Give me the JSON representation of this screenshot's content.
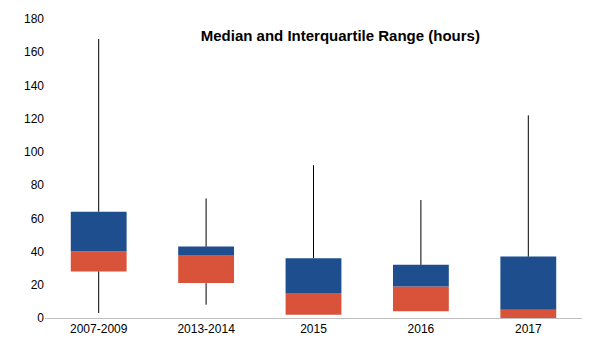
{
  "chart_data": {
    "type": "box",
    "title": "Median and Interquartile Range (hours)",
    "categories": [
      "2007-2009",
      "2013-2014",
      "2015",
      "2016",
      "2017"
    ],
    "min": [
      3,
      8,
      2,
      4,
      0
    ],
    "q1": [
      28,
      21,
      2,
      4,
      0
    ],
    "median": [
      40,
      38,
      15,
      19,
      5
    ],
    "q3": [
      64,
      43,
      36,
      32,
      37
    ],
    "max": [
      168,
      72,
      92,
      71,
      122
    ],
    "colors": [
      "#d9533b",
      "#1f4e8f"
    ],
    "ylim": [
      0,
      180
    ],
    "yticks": [
      0,
      20,
      40,
      60,
      80,
      100,
      120,
      140,
      160,
      180
    ],
    "grid": false
  }
}
